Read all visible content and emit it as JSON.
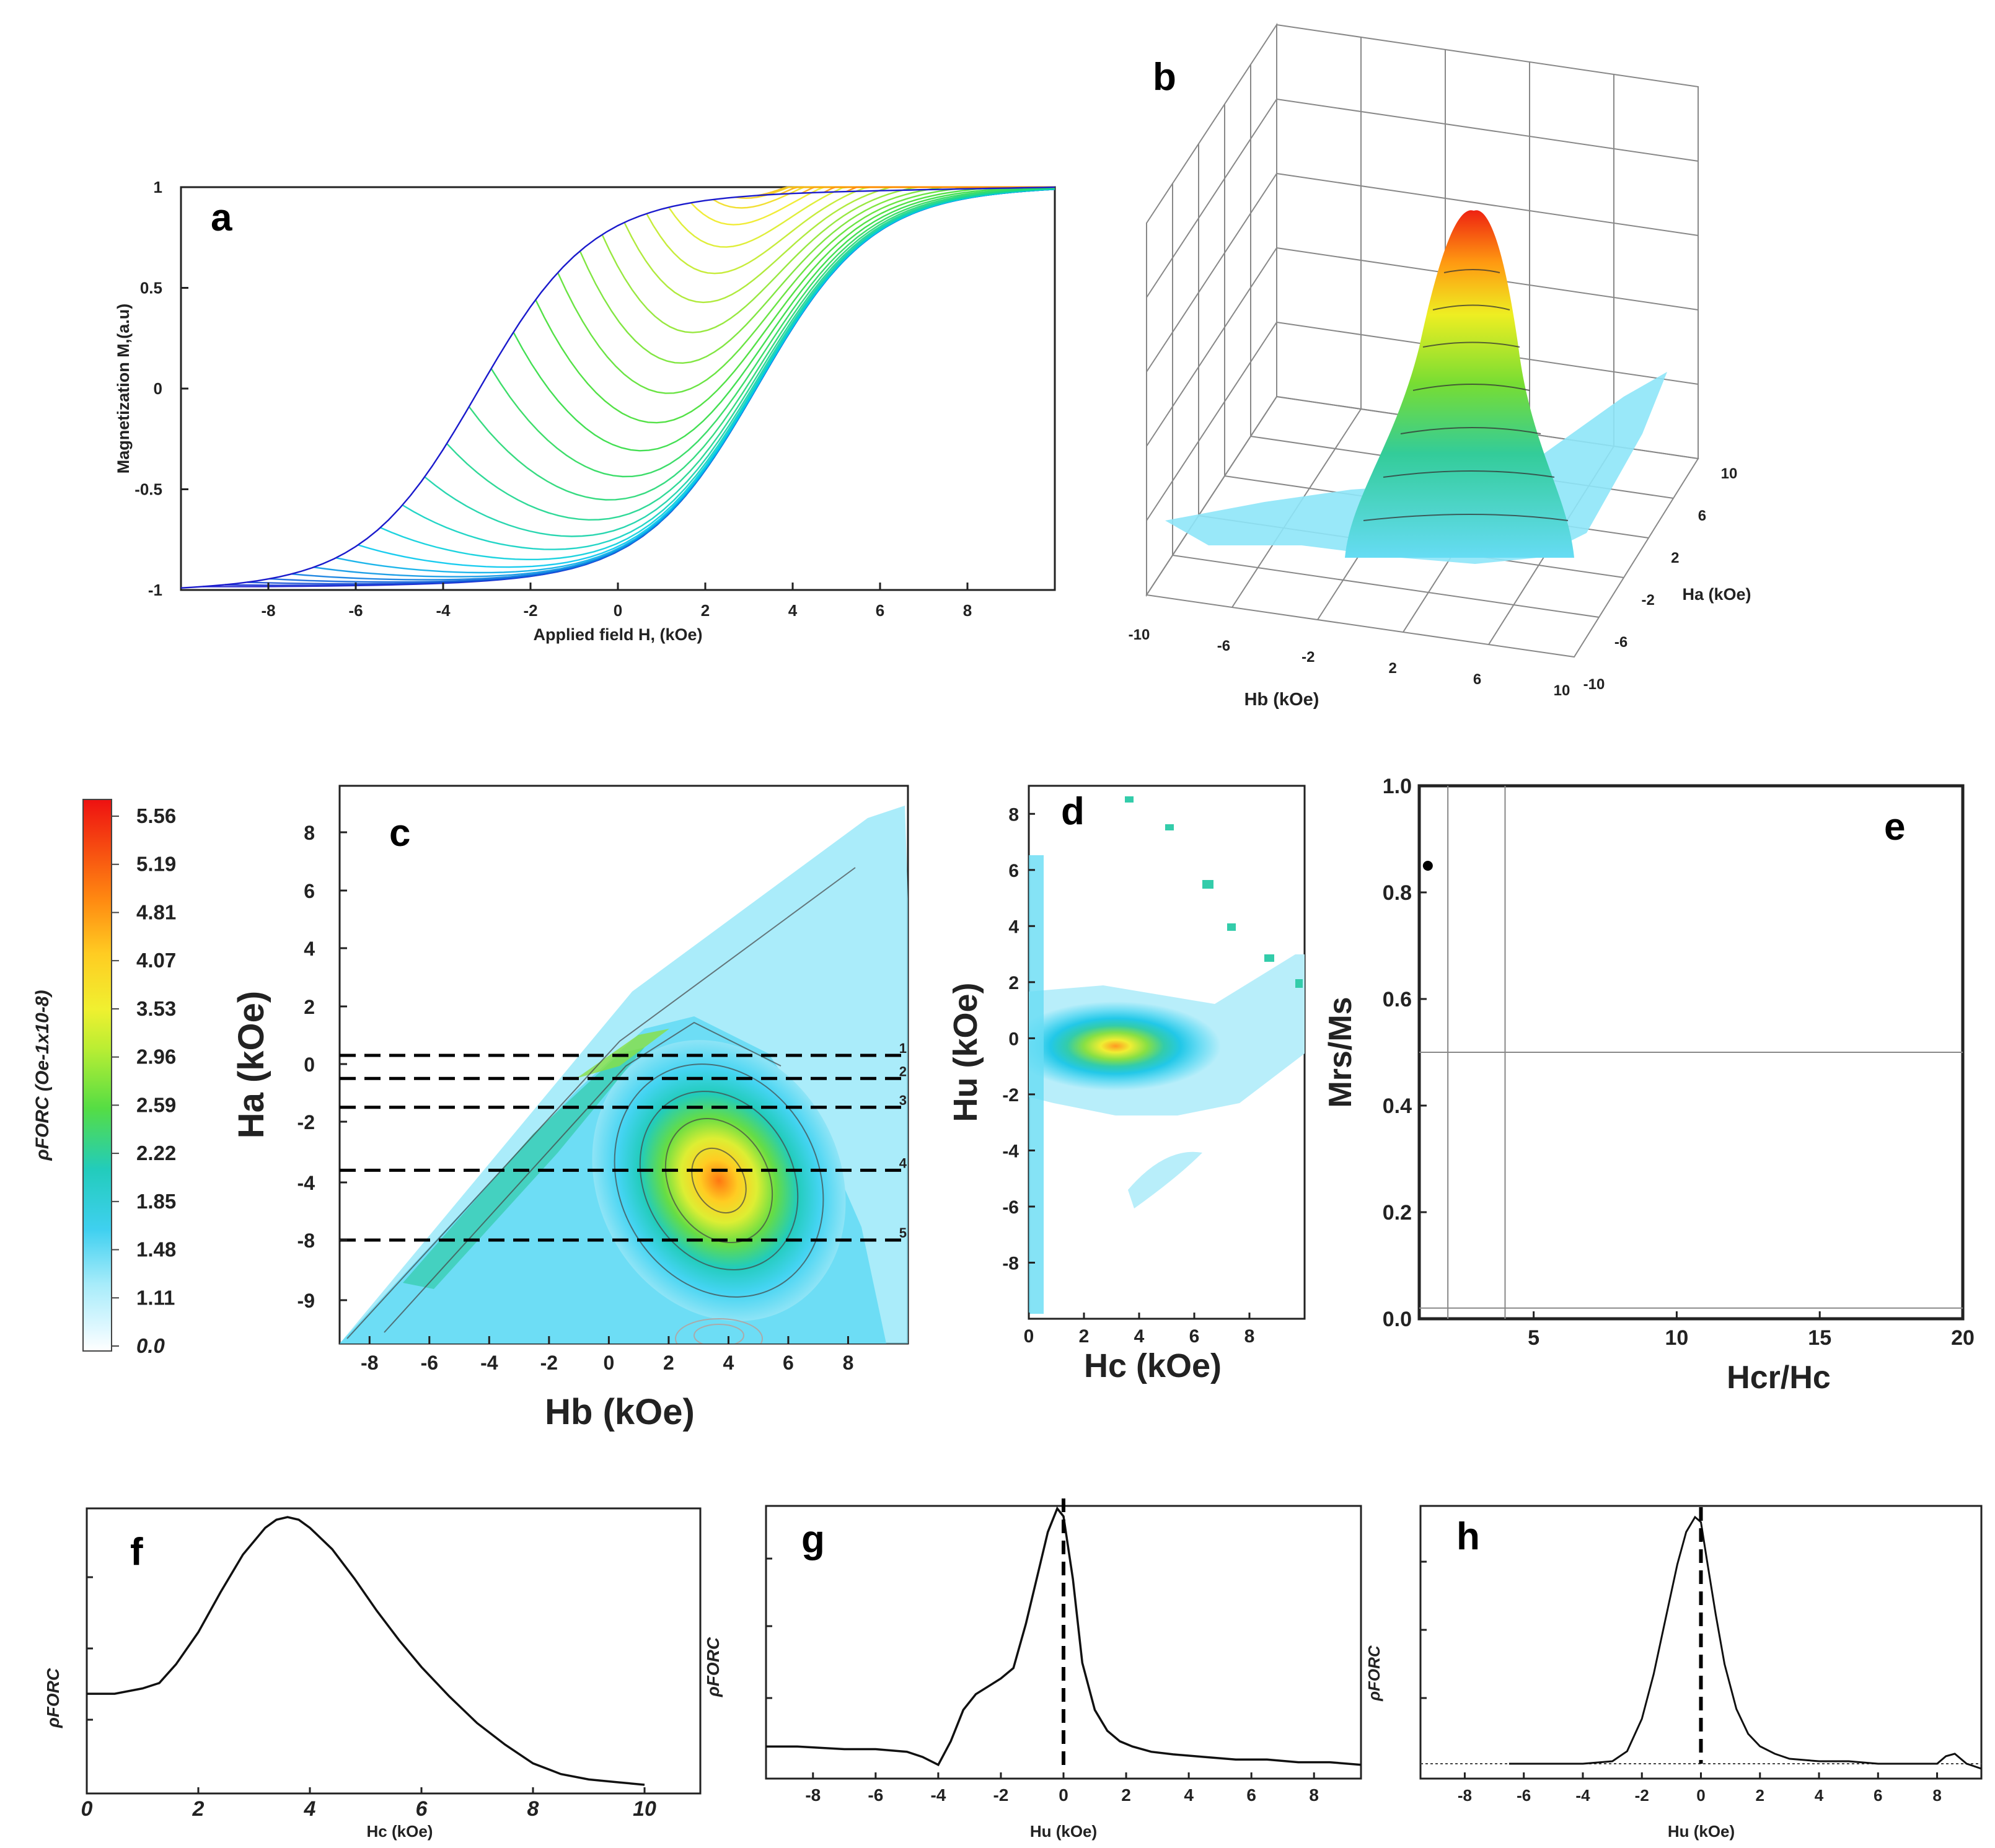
{
  "chart_data": [
    {
      "panel": "a",
      "type": "line",
      "xlabel": "Applied field H, (kOe)",
      "ylabel": "Magnetization M,(a.u)",
      "xlim": [
        -10,
        10
      ],
      "ylim": [
        -1,
        1
      ],
      "xticks": [
        "-8",
        "-6",
        "-4",
        "-2",
        "0",
        "2",
        "4",
        "6",
        "8"
      ],
      "yticks": [
        "-1",
        "-0.5",
        "0",
        "0.5",
        "1"
      ],
      "curve_family": {
        "n_curves": 30,
        "reversal_fields": [
          -9.5,
          9.5
        ],
        "colors": [
          "#1a1acc",
          "#00ccee",
          "#33dd33",
          "#eeee22",
          "#ff8800"
        ]
      }
    },
    {
      "panel": "b",
      "type": "surface",
      "xlabel": "Hb (kOe)",
      "ylabel": "Ha (kOe)",
      "xticks": [
        "-10",
        "-6",
        "-2",
        "2",
        "6",
        "10"
      ],
      "yticks": [
        "10",
        "6",
        "2",
        "-2",
        "-6",
        "-10"
      ],
      "peak": {
        "Hb": 3.5,
        "Ha": -3.5
      }
    },
    {
      "panel": "c",
      "type": "heatmap",
      "xlabel": "Hb (kOe)",
      "ylabel": "Ha (kOe)",
      "xlim": [
        -9,
        10
      ],
      "ylim": [
        -10,
        9.5
      ],
      "xticks": [
        "-8",
        "-6",
        "-4",
        "-2",
        "0",
        "2",
        "4",
        "6",
        "8"
      ],
      "yticks": [
        "8",
        "6",
        "4",
        "2",
        "0",
        "-2",
        "-4",
        "-8",
        "-9"
      ],
      "peak": {
        "Hb": 3.5,
        "Ha": -3.8
      },
      "profile_lines": [
        {
          "label": "1",
          "Ha": 0.3
        },
        {
          "label": "2",
          "Ha": -0.5
        },
        {
          "label": "3",
          "Ha": -1.5
        },
        {
          "label": "4",
          "Ha": -3.6
        },
        {
          "label": "5",
          "Ha": -8.0
        }
      ],
      "colorbar": {
        "label": "ρFORC (Oe-1x10-8)",
        "ticks": [
          "5.56",
          "5.19",
          "4.81",
          "4.07",
          "3.53",
          "2.96",
          "2.59",
          "2.22",
          "1.85",
          "1.48",
          "1.11",
          "0.0"
        ]
      }
    },
    {
      "panel": "d",
      "type": "heatmap",
      "xlabel": "Hc (kOe)",
      "ylabel": "Hu (kOe)",
      "xlim": [
        0,
        10
      ],
      "ylim": [
        -10,
        9
      ],
      "xticks": [
        "0",
        "2",
        "4",
        "6",
        "8"
      ],
      "yticks": [
        "8",
        "6",
        "4",
        "2",
        "0",
        "-2",
        "-4",
        "-6",
        "-8"
      ],
      "peak": {
        "Hc": 3.5,
        "Hu": -0.3
      }
    },
    {
      "panel": "e",
      "type": "scatter",
      "xlabel": "Hcr/Hc",
      "ylabel": "Mrs/Ms",
      "xlim": [
        1,
        20
      ],
      "ylim": [
        0,
        1
      ],
      "xticks": [
        "5",
        "10",
        "15",
        "20"
      ],
      "yticks": [
        "0.0",
        "0.2",
        "0.4",
        "0.6",
        "0.8",
        "1.0"
      ],
      "points": [
        [
          1.3,
          0.85
        ]
      ],
      "ref_lines": {
        "x": [
          2,
          4
        ],
        "y": [
          0.5,
          0.02
        ]
      }
    },
    {
      "panel": "f",
      "type": "line",
      "xlabel": "Hc (kOe)",
      "ylabel": "ρFORC",
      "xlim": [
        0,
        11
      ],
      "xticks": [
        "0",
        "2",
        "4",
        "6",
        "8",
        "10"
      ],
      "x": [
        0,
        0.5,
        1,
        1.3,
        1.6,
        2,
        2.4,
        2.8,
        3.2,
        3.4,
        3.6,
        3.8,
        4,
        4.4,
        4.8,
        5.2,
        5.6,
        6,
        6.5,
        7,
        7.5,
        8,
        8.5,
        9,
        9.5,
        10
      ],
      "y": [
        0.34,
        0.34,
        0.36,
        0.38,
        0.45,
        0.57,
        0.72,
        0.86,
        0.96,
        0.99,
        1.0,
        0.99,
        0.96,
        0.88,
        0.77,
        0.65,
        0.54,
        0.44,
        0.33,
        0.23,
        0.15,
        0.08,
        0.04,
        0.02,
        0.01,
        0.0
      ]
    },
    {
      "panel": "g",
      "type": "line",
      "xlabel": "Hu (kOe)",
      "ylabel": "ρFORC",
      "xlim": [
        -9.5,
        9.5
      ],
      "xticks": [
        "-8",
        "-6",
        "-4",
        "-2",
        "0",
        "2",
        "4",
        "6",
        "8"
      ],
      "x": [
        -9.5,
        -8.5,
        -7,
        -6,
        -5,
        -4.5,
        -4,
        -3.6,
        -3.2,
        -2.8,
        -2.4,
        -2,
        -1.6,
        -1.2,
        -0.8,
        -0.5,
        -0.2,
        0,
        0.3,
        0.6,
        1,
        1.4,
        1.8,
        2.2,
        2.8,
        3.5,
        4.5,
        5.5,
        6.5,
        7.5,
        8.5,
        9.5
      ],
      "y": [
        0.08,
        0.08,
        0.07,
        0.07,
        0.06,
        0.04,
        0.01,
        0.1,
        0.22,
        0.28,
        0.31,
        0.34,
        0.38,
        0.55,
        0.75,
        0.9,
        0.99,
        0.96,
        0.72,
        0.4,
        0.22,
        0.14,
        0.1,
        0.08,
        0.06,
        0.05,
        0.04,
        0.03,
        0.03,
        0.02,
        0.02,
        0.01
      ],
      "vline_x": 0
    },
    {
      "panel": "h",
      "type": "line",
      "xlabel": "Hu (kOe)",
      "ylabel": "ρFORC",
      "xlim": [
        -9.5,
        9.5
      ],
      "xticks": [
        "-8",
        "-6",
        "-4",
        "-2",
        "0",
        "2",
        "4",
        "6",
        "8"
      ],
      "x": [
        -6.5,
        -5,
        -4,
        -3,
        -2.5,
        -2,
        -1.6,
        -1.2,
        -0.8,
        -0.5,
        -0.2,
        0,
        0.2,
        0.5,
        0.8,
        1.2,
        1.6,
        2,
        2.5,
        3,
        4,
        5,
        6,
        7,
        8,
        8.3,
        8.6,
        9,
        9.5
      ],
      "y": [
        0.0,
        0.0,
        0.0,
        0.01,
        0.05,
        0.18,
        0.36,
        0.58,
        0.8,
        0.93,
        0.99,
        0.97,
        0.82,
        0.6,
        0.4,
        0.22,
        0.12,
        0.07,
        0.04,
        0.02,
        0.01,
        0.01,
        0.0,
        0.0,
        0.0,
        0.03,
        0.04,
        0.0,
        -0.02
      ],
      "vline_x": 0,
      "baseline": 0
    }
  ]
}
